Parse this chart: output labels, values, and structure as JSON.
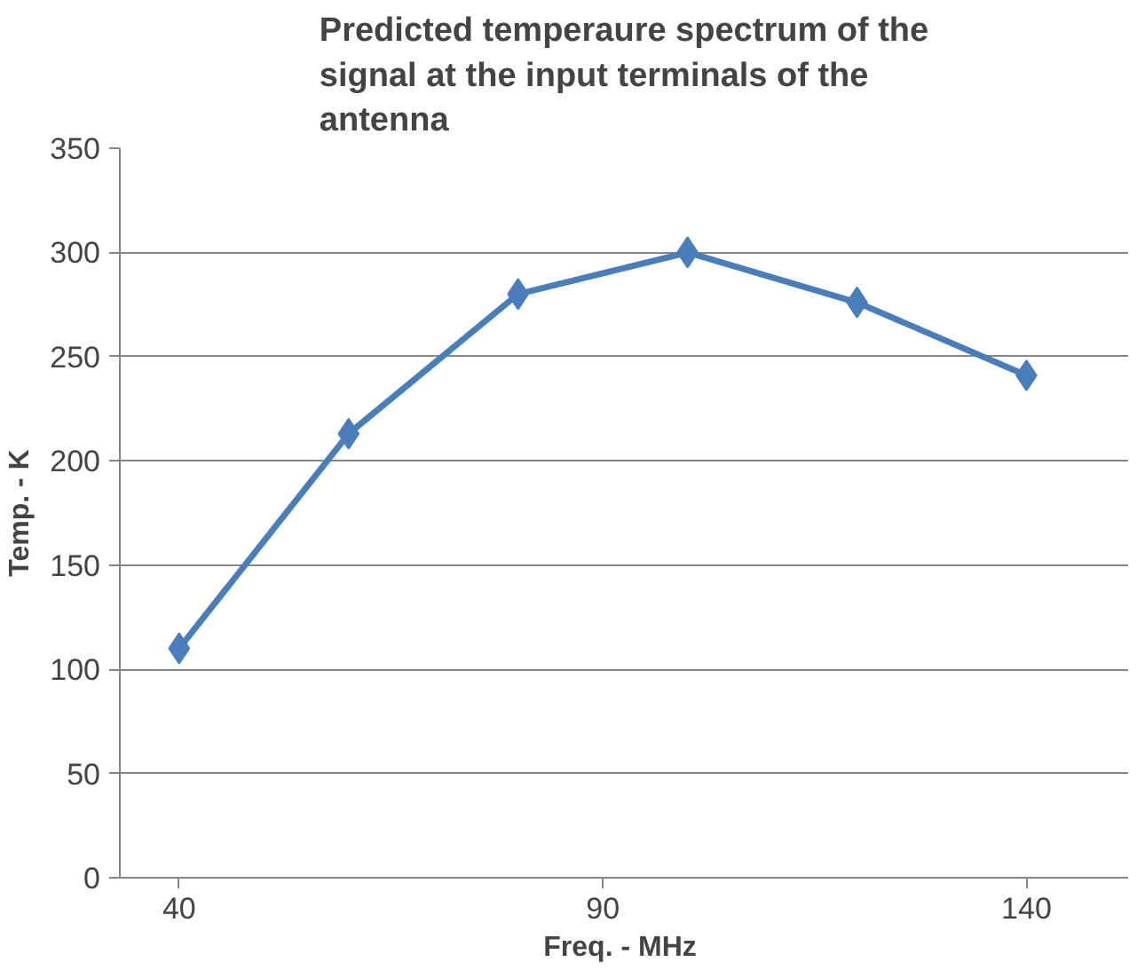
{
  "chart_data": {
    "type": "line",
    "title": "Predicted temperaure spectrum of the signal at the input terminals of the antenna",
    "xlabel": "Freq.  - MHz",
    "ylabel": "Temp. - K",
    "x": [
      40,
      60,
      80,
      100,
      120,
      140
    ],
    "series": [
      {
        "color": "#4a7ebb",
        "values": [
          110,
          213,
          280,
          300,
          276,
          241
        ]
      }
    ],
    "xlim": [
      33,
      152
    ],
    "xticks": [
      40,
      90,
      140
    ],
    "ylim": [
      0,
      350
    ],
    "yticks": [
      0,
      50,
      100,
      150,
      200,
      250,
      300,
      350
    ],
    "grid": "y",
    "marker": "diamond",
    "line_style": "solid"
  }
}
